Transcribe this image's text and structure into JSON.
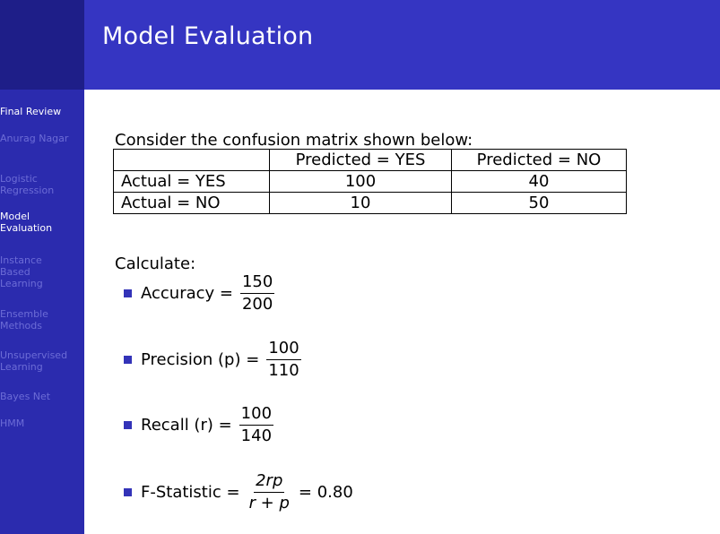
{
  "sidebar": {
    "items": [
      {
        "label": "Final Review",
        "state": "head"
      },
      {
        "label": "Anurag Nagar",
        "state": "dim"
      },
      {
        "label": "Logistic\nRegression",
        "state": "dim"
      },
      {
        "label": "Model\nEvaluation",
        "state": "active"
      },
      {
        "label": "Instance\nBased\nLearning",
        "state": "dim"
      },
      {
        "label": "Ensemble\nMethods",
        "state": "dim"
      },
      {
        "label": "Unsupervised\nLearning",
        "state": "dim"
      },
      {
        "label": "Bayes Net",
        "state": "dim"
      },
      {
        "label": "HMM",
        "state": "dim"
      }
    ]
  },
  "header": {
    "title": "Model Evaluation"
  },
  "main": {
    "intro": "Consider the confusion matrix shown below:",
    "table": {
      "header": [
        "",
        "Predicted = YES",
        "Predicted = NO"
      ],
      "rows": [
        [
          "Actual = YES",
          "100",
          "40"
        ],
        [
          "Actual = NO",
          "10",
          "50"
        ]
      ]
    },
    "calculate": "Calculate:",
    "formulas": {
      "accuracy": {
        "label": "Accuracy =",
        "num": "150",
        "den": "200"
      },
      "precision": {
        "label": "Precision (p) =",
        "num": "100",
        "den": "110"
      },
      "recall": {
        "label": "Recall (r) =",
        "num": "100",
        "den": "140"
      },
      "fstat": {
        "label": "F-Statistic =",
        "num": "2rp",
        "den": "r + p",
        "result": "= 0.80"
      }
    }
  },
  "colors": {
    "sidebar": "#2b2bae",
    "header": "#3535c2",
    "bullet": "#3333b8"
  }
}
